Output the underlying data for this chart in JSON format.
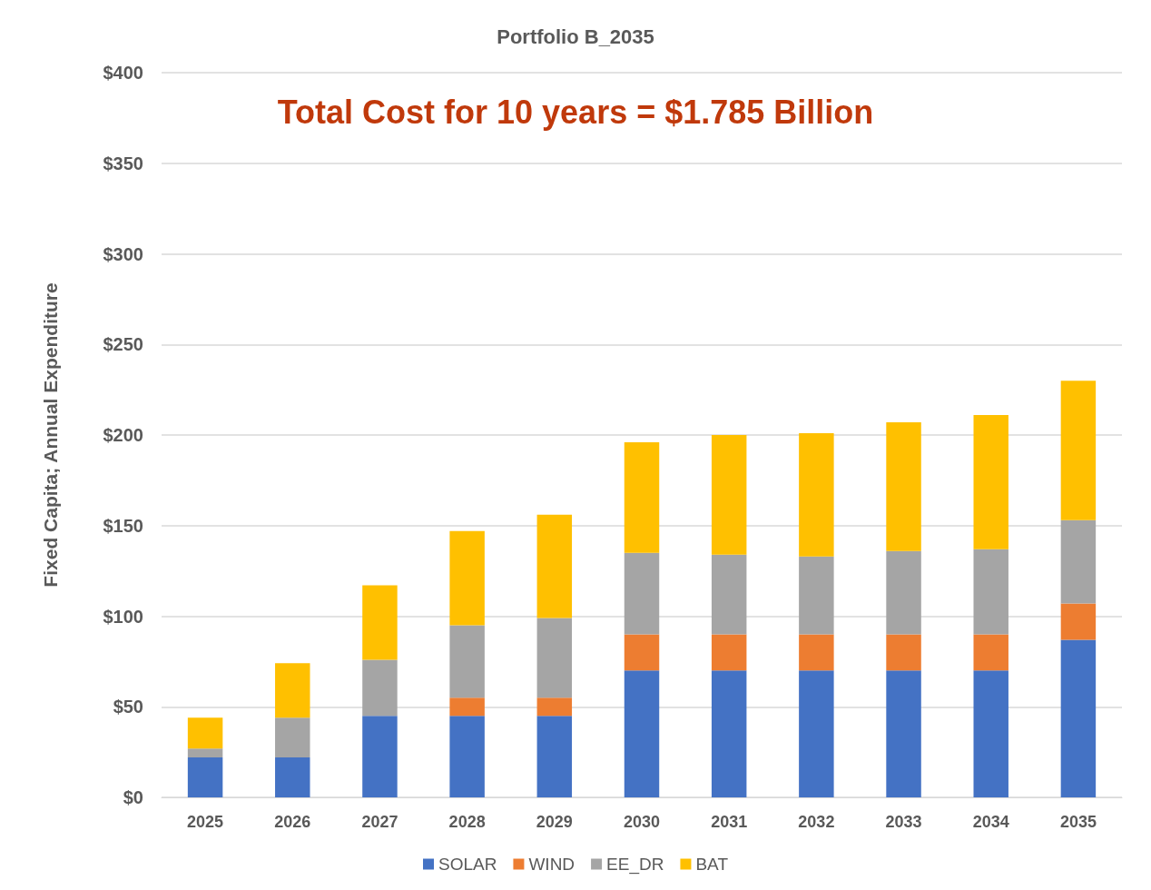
{
  "chart_data": {
    "type": "bar",
    "title": "Portfolio B_2035",
    "ylabel": "Fixed Capita; Annual Expenditure",
    "annotations": [
      "Total Cost for 10 years = $1.785 Billion"
    ],
    "categories": [
      "2025",
      "2026",
      "2027",
      "2028",
      "2029",
      "2030",
      "2031",
      "2032",
      "2033",
      "2034",
      "2035"
    ],
    "stacked": true,
    "series": [
      {
        "name": "SOLAR",
        "color": "#4472c4",
        "values": [
          22,
          22,
          45,
          45,
          45,
          70,
          70,
          70,
          70,
          70,
          87
        ]
      },
      {
        "name": "WIND",
        "color": "#ed7d31",
        "values": [
          0,
          0,
          0,
          10,
          10,
          20,
          20,
          20,
          20,
          20,
          20
        ]
      },
      {
        "name": "EE_DR",
        "color": "#a5a5a5",
        "values": [
          5,
          22,
          31,
          40,
          44,
          45,
          44,
          43,
          46,
          47,
          46
        ]
      },
      {
        "name": "BAT",
        "color": "#ffc000",
        "values": [
          17,
          30,
          41,
          52,
          57,
          61,
          66,
          68,
          71,
          74,
          77
        ]
      }
    ],
    "ylim": [
      0,
      400
    ],
    "yticks": [
      {
        "value": 0,
        "label": "$0"
      },
      {
        "value": 50,
        "label": "$50"
      },
      {
        "value": 100,
        "label": "$100"
      },
      {
        "value": 150,
        "label": "$150"
      },
      {
        "value": 200,
        "label": "$200"
      },
      {
        "value": 250,
        "label": "$250"
      },
      {
        "value": 300,
        "label": "$300"
      },
      {
        "value": 350,
        "label": "$350"
      },
      {
        "value": 400,
        "label": "$400"
      }
    ],
    "grid": "y",
    "legend": "bottom"
  }
}
